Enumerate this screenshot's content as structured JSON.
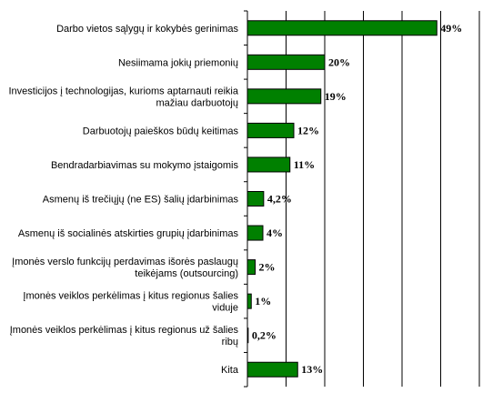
{
  "chart_data": {
    "type": "bar",
    "orientation": "horizontal",
    "categories": [
      [
        "Darbo vietos sąlygų ir kokybės gerinimas"
      ],
      [
        "Nesiimama jokių priemonių"
      ],
      [
        "Investicijos į technologijas, kurioms aptarnauti reikia",
        "mažiau darbuotojų"
      ],
      [
        "Darbuotojų paieškos būdų keitimas"
      ],
      [
        "Bendradarbiavimas su mokymo įstaigomis"
      ],
      [
        "Asmenų iš trečiųjų (ne ES) šalių įdarbinimas"
      ],
      [
        "Asmenų iš socialinės atskirties grupių įdarbinimas"
      ],
      [
        "Įmonės verslo funkcijų perdavimas išorės paslaugų",
        "teikėjams (outsourcing)"
      ],
      [
        "Įmonės veiklos perkėlimas į kitus regionus šalies",
        "viduje"
      ],
      [
        "Įmonės veiklos perkėlimas į kitus regionus už šalies",
        "ribų"
      ],
      [
        "Kita"
      ]
    ],
    "values": [
      49,
      20,
      19,
      12,
      11,
      4.2,
      4,
      2,
      1,
      0.2,
      13
    ],
    "data_labels": [
      "49%",
      "20%",
      "19%",
      "12%",
      "11%",
      "4,2%",
      "4%",
      "2%",
      "1%",
      "0,2%",
      "13%"
    ],
    "xlim": [
      0,
      60
    ],
    "grid": true,
    "bar_color": "#008000",
    "title": "",
    "xlabel": "",
    "ylabel": ""
  }
}
